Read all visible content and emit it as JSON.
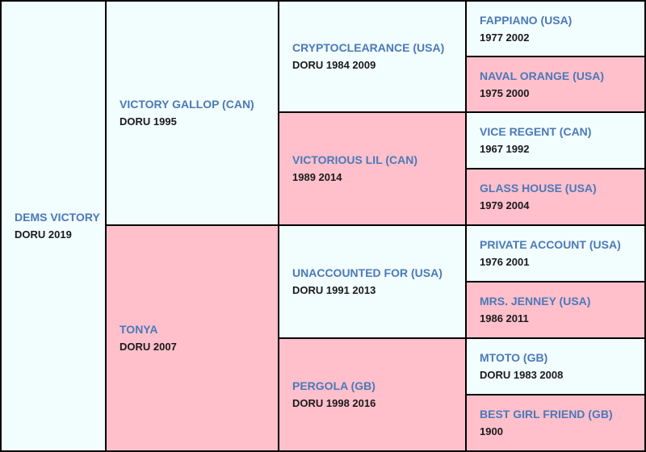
{
  "pedigree": {
    "subject": {
      "name": "DEMS VICTORY",
      "info": "DORU 2019"
    },
    "sire": {
      "name": "VICTORY GALLOP (CAN)",
      "info": "DORU 1995"
    },
    "dam": {
      "name": "TONYA",
      "info": "DORU 2007"
    },
    "sire_sire": {
      "name": "CRYPTOCLEARANCE (USA)",
      "info": "DORU 1984 2009"
    },
    "sire_dam": {
      "name": "VICTORIOUS LIL (CAN)",
      "info": "1989 2014"
    },
    "dam_sire": {
      "name": "UNACCOUNTED FOR (USA)",
      "info": "DORU 1991 2013"
    },
    "dam_dam": {
      "name": "PERGOLA (GB)",
      "info": "DORU 1998 2016"
    },
    "sss": {
      "name": "FAPPIANO (USA)",
      "info": "1977 2002"
    },
    "ssd": {
      "name": "NAVAL ORANGE (USA)",
      "info": "1975 2000"
    },
    "sds": {
      "name": "VICE REGENT (CAN)",
      "info": "1967 1992"
    },
    "sdd": {
      "name": "GLASS HOUSE (USA)",
      "info": "1979 2004"
    },
    "dss": {
      "name": "PRIVATE ACCOUNT (USA)",
      "info": "1976 2001"
    },
    "dsd": {
      "name": "MRS. JENNEY (USA)",
      "info": "1986 2011"
    },
    "dds": {
      "name": "MTOTO (GB)",
      "info": "DORU 1983 2008"
    },
    "ddd": {
      "name": "BEST GIRL FRIEND (GB)",
      "info": "1900"
    }
  },
  "colors": {
    "male_bg": "#f2fdfd",
    "female_bg": "#ffc0cb",
    "name_text": "#4a79b9",
    "border": "#000000"
  }
}
